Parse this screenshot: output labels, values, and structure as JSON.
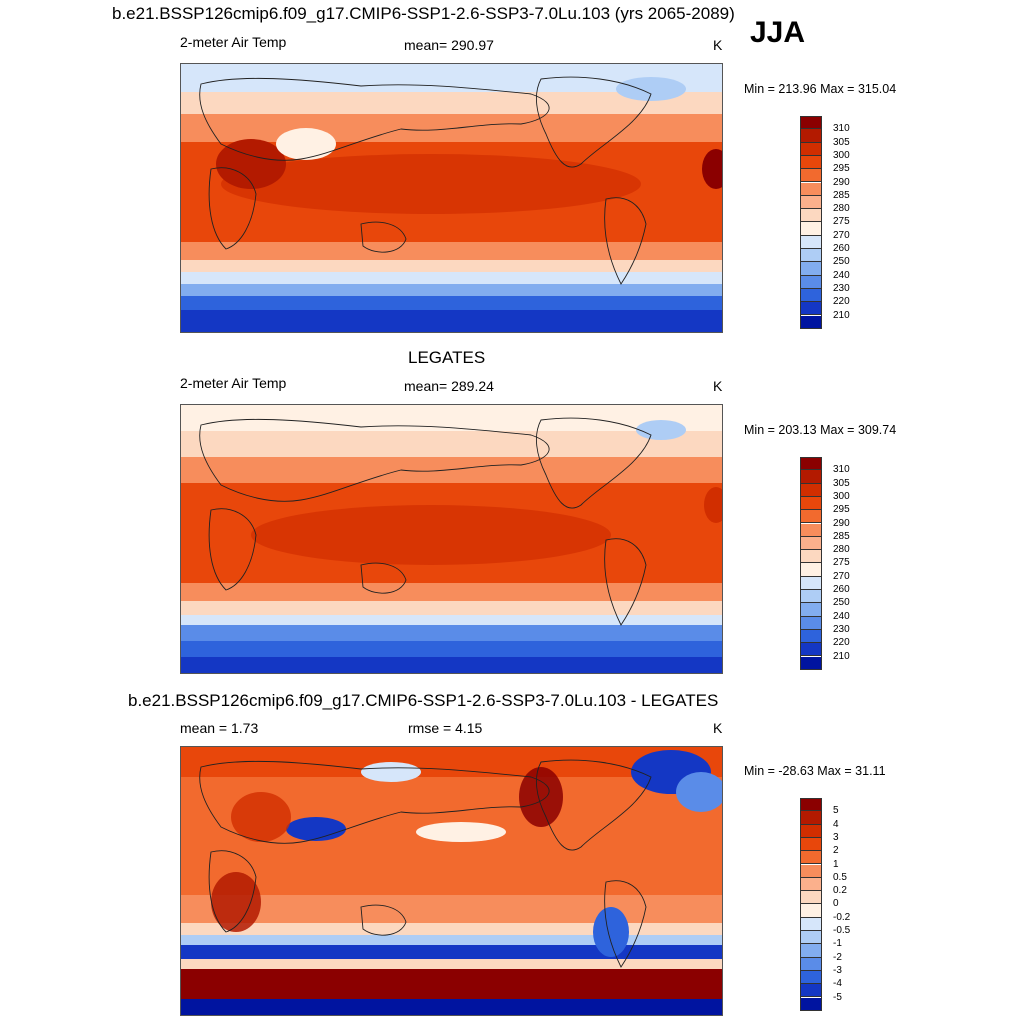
{
  "panels": [
    {
      "title": "b.e21.BSSP126cmip6.f09_g17.CMIP6-SSP1-2.6-SSP3-7.0Lu.103 (yrs 2065-2089)",
      "left_label": "2-meter Air Temp",
      "center_label": "mean= 290.97",
      "units": "K",
      "minmax": "Min = 213.96 Max = 315.04"
    },
    {
      "title": "LEGATES",
      "left_label": "2-meter Air Temp",
      "center_label": "mean= 289.24",
      "units": "K",
      "minmax": "Min = 203.13 Max = 309.74"
    },
    {
      "title": "b.e21.BSSP126cmip6.f09_g17.CMIP6-SSP1-2.6-SSP3-7.0Lu.103 - LEGATES",
      "left_label": "mean =   1.73",
      "center_label": "rmse =   4.15",
      "units": "K",
      "minmax": "Min = -28.63 Max =  31.11"
    }
  ],
  "season": "JJA",
  "colorbars": {
    "temperature": {
      "labels": [
        "310",
        "305",
        "300",
        "295",
        "290",
        "285",
        "280",
        "275",
        "270",
        "260",
        "250",
        "240",
        "230",
        "220",
        "210"
      ],
      "colors": [
        "#8b0000",
        "#b31a00",
        "#d12e00",
        "#e8470b",
        "#f26a2e",
        "#f78d5c",
        "#fbb08c",
        "#fcd8c0",
        "#fff1e4",
        "#d6e6fa",
        "#aecdf5",
        "#82adef",
        "#5a8ce8",
        "#2e63dc",
        "#1437c4",
        "#0014a0"
      ]
    },
    "difference": {
      "labels": [
        "5",
        "4",
        "3",
        "2",
        "1",
        "0.5",
        "0.2",
        "0",
        "-0.2",
        "-0.5",
        "-1",
        "-2",
        "-3",
        "-4",
        "-5"
      ],
      "colors": [
        "#8b0000",
        "#b31a00",
        "#d12e00",
        "#e8470b",
        "#f26a2e",
        "#f78d5c",
        "#fbb08c",
        "#fcd8c0",
        "#fff1e4",
        "#d6e6fa",
        "#aecdf5",
        "#82adef",
        "#5a8ce8",
        "#2e63dc",
        "#1437c4",
        "#0014a0"
      ]
    }
  }
}
